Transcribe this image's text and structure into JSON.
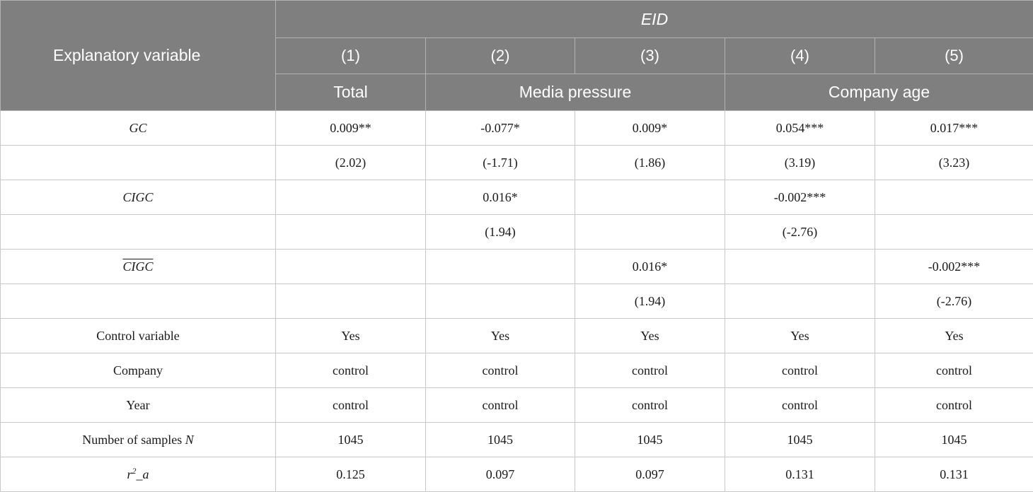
{
  "header": {
    "explanatory": "Explanatory variable",
    "dependent": "EID",
    "columns": [
      "(1)",
      "(2)",
      "(3)",
      "(4)",
      "(5)"
    ],
    "groups": [
      "Total",
      "Media pressure",
      "Company age"
    ]
  },
  "rows": [
    {
      "label": "GC",
      "cells": [
        "0.009**",
        "-0.077*",
        "0.009*",
        "0.054***",
        "0.017***"
      ]
    },
    {
      "label": "",
      "cells": [
        "(2.02)",
        "(-1.71)",
        "(1.86)",
        "(3.19)",
        "(3.23)"
      ]
    },
    {
      "label": "CIGC",
      "cells": [
        "",
        "0.016*",
        "",
        "-0.002***",
        ""
      ]
    },
    {
      "label": "",
      "cells": [
        "",
        "(1.94)",
        "",
        "(-2.76)",
        ""
      ]
    },
    {
      "label": "CIGC",
      "cells": [
        "",
        "",
        "0.016*",
        "",
        "-0.002***"
      ]
    },
    {
      "label": "",
      "cells": [
        "",
        "",
        "(1.94)",
        "",
        "(-2.76)"
      ]
    },
    {
      "label": "Control variable",
      "cells": [
        "Yes",
        "Yes",
        "Yes",
        "Yes",
        "Yes"
      ]
    },
    {
      "label": "Company",
      "cells": [
        "control",
        "control",
        "control",
        "control",
        "control"
      ]
    },
    {
      "label": "Year",
      "cells": [
        "control",
        "control",
        "control",
        "control",
        "control"
      ]
    },
    {
      "label": "Number of samples ",
      "label_var": "N",
      "cells": [
        "1045",
        "1045",
        "1045",
        "1045",
        "1045"
      ]
    },
    {
      "label": "r",
      "label_sup": "2",
      "label_rest": "_a",
      "cells": [
        "0.125",
        "0.097",
        "0.097",
        "0.131",
        "0.131"
      ]
    }
  ]
}
